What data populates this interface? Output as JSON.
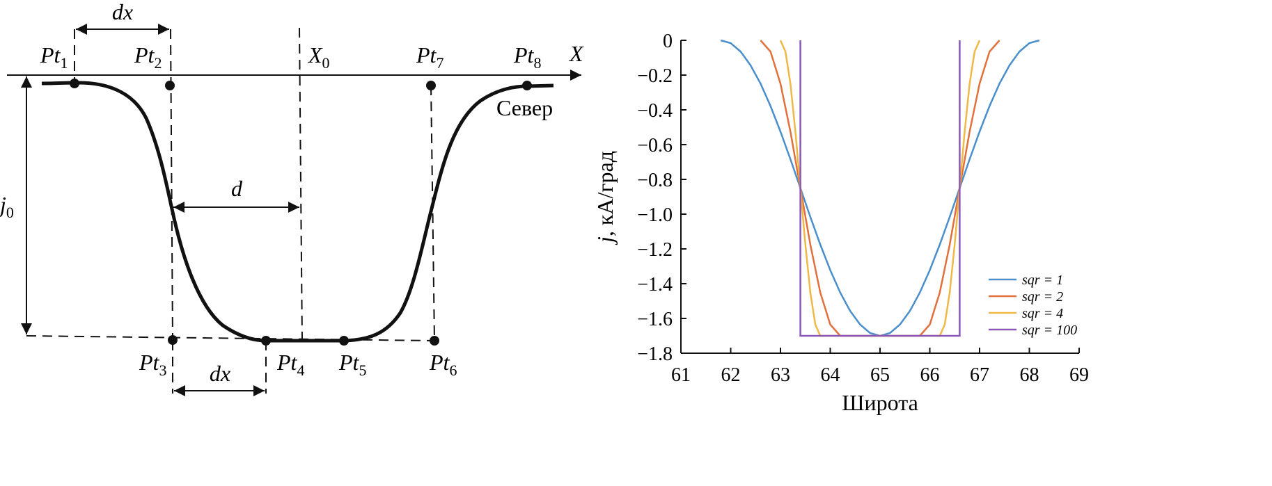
{
  "diagram": {
    "points": [
      {
        "base": "Pt",
        "sub": "1"
      },
      {
        "base": "Pt",
        "sub": "2"
      },
      {
        "base": "Pt",
        "sub": "3"
      },
      {
        "base": "Pt",
        "sub": "4"
      },
      {
        "base": "Pt",
        "sub": "5"
      },
      {
        "base": "Pt",
        "sub": "6"
      },
      {
        "base": "Pt",
        "sub": "7"
      },
      {
        "base": "Pt",
        "sub": "8"
      }
    ],
    "axis_label": "X",
    "center": {
      "base": "X",
      "sub": "0"
    },
    "amplitude": {
      "base": "j",
      "sub": "0"
    },
    "step_top": "dx",
    "step_bottom": "dx",
    "half_width": "d",
    "side": "Север"
  },
  "chart_data": {
    "type": "line",
    "xlabel": "Широта",
    "ylabel": {
      "italic": "j",
      "rest": ", кА/град"
    },
    "xlim": [
      61,
      69
    ],
    "ylim": [
      -1.8,
      0
    ],
    "xticks": [
      61,
      62,
      63,
      64,
      65,
      66,
      67,
      68,
      69
    ],
    "yticks": [
      0,
      {
        "value": -0.2,
        "label": "−0.2"
      },
      {
        "value": -0.4,
        "label": "−0.4"
      },
      {
        "value": -0.6,
        "label": "−0.6"
      },
      {
        "value": -0.8,
        "label": "−0.8"
      },
      {
        "value": -1.0,
        "label": "−1.0"
      },
      {
        "value": -1.2,
        "label": "−1.2"
      },
      {
        "value": -1.4,
        "label": "−1.4"
      },
      {
        "value": -1.6,
        "label": "−1.6"
      },
      {
        "value": -1.8,
        "label": "−1.8"
      }
    ],
    "legend": "lower right",
    "series": [
      {
        "name": "sqr = 1",
        "color": "#4a8fcb",
        "x": [
          61.8,
          62.0,
          62.2,
          62.4,
          62.6,
          62.8,
          63.0,
          63.2,
          63.4,
          63.6,
          63.8,
          64.0,
          64.2,
          64.4,
          64.6,
          64.8,
          65.0,
          65.2,
          65.4,
          65.6,
          65.8,
          66.0,
          66.2,
          66.4,
          66.6,
          66.8,
          67.0,
          67.2,
          67.4,
          67.6,
          67.8,
          68.0,
          68.2
        ],
        "values": [
          0,
          -0.016,
          -0.065,
          -0.144,
          -0.249,
          -0.378,
          -0.525,
          -0.684,
          -0.85,
          -1.016,
          -1.175,
          -1.322,
          -1.451,
          -1.557,
          -1.635,
          -1.684,
          -1.7,
          -1.684,
          -1.635,
          -1.557,
          -1.451,
          -1.322,
          -1.175,
          -1.016,
          -0.85,
          -0.684,
          -0.525,
          -0.378,
          -0.249,
          -0.144,
          -0.065,
          -0.016,
          0
        ]
      },
      {
        "name": "sqr = 2",
        "color": "#e2703c",
        "x": [
          62.6,
          62.8,
          63.0,
          63.2,
          63.4,
          63.6,
          63.8,
          64.0,
          64.2,
          65.8,
          66.0,
          66.2,
          66.4,
          66.6,
          66.8,
          67.0,
          67.2,
          67.4
        ],
        "values": [
          0,
          -0.065,
          -0.249,
          -0.525,
          -0.85,
          -1.175,
          -1.451,
          -1.635,
          -1.7,
          -1.7,
          -1.635,
          -1.451,
          -1.175,
          -0.85,
          -0.525,
          -0.249,
          -0.065,
          0
        ]
      },
      {
        "name": "sqr = 4",
        "color": "#f0b945",
        "x": [
          63.0,
          63.1,
          63.2,
          63.3,
          63.4,
          63.5,
          63.6,
          63.7,
          63.8,
          66.2,
          66.3,
          66.4,
          66.5,
          66.6,
          66.7,
          66.8,
          66.9,
          67.0
        ],
        "values": [
          0,
          -0.065,
          -0.249,
          -0.525,
          -0.85,
          -1.175,
          -1.451,
          -1.635,
          -1.7,
          -1.7,
          -1.635,
          -1.451,
          -1.175,
          -0.85,
          -0.525,
          -0.249,
          -0.065,
          0
        ]
      },
      {
        "name": "sqr = 100",
        "color": "#8a57b8",
        "x": [
          63.4,
          63.4,
          66.6,
          66.6
        ],
        "values": [
          0,
          -1.7,
          -1.7,
          0
        ]
      }
    ]
  }
}
